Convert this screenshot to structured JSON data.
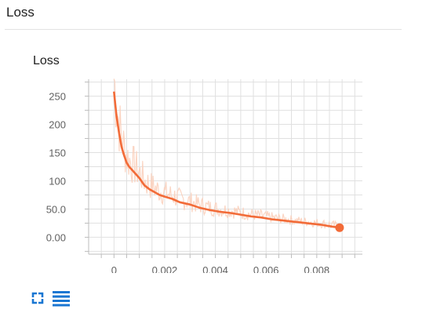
{
  "section": {
    "title": "Loss"
  },
  "card": {
    "title": "Loss",
    "expand_icon": "fullscreen-icon",
    "data_icon": "list-icon"
  },
  "colors": {
    "series": "#f26b38",
    "series_raw": "#fbd0bd",
    "grid": "#e0e0e0",
    "axis": "#bdbdbd",
    "tick_text": "#616161",
    "icon": "#1976d2"
  },
  "chart_data": {
    "type": "line",
    "title": "Loss",
    "xlabel": "",
    "ylabel": "",
    "xlim": [
      -0.001,
      0.0098
    ],
    "ylim": [
      -30,
      280
    ],
    "x_ticks": [
      0,
      0.002,
      0.004,
      0.006,
      0.008
    ],
    "x_tick_labels": [
      "0",
      "0.002",
      "0.004",
      "0.006",
      "0.008"
    ],
    "y_ticks": [
      0,
      50,
      100,
      150,
      200,
      250
    ],
    "y_tick_labels": [
      "0.00",
      "50.0",
      "100",
      "150",
      "200",
      "250"
    ],
    "grid": true,
    "series": [
      {
        "x": [
          0,
          0.0001,
          0.0002,
          0.0003,
          0.0004,
          0.0005,
          0.0006,
          0.0008,
          0.001,
          0.0012,
          0.0014,
          0.0016,
          0.0018,
          0.002,
          0.0023,
          0.0026,
          0.003,
          0.0034,
          0.0038,
          0.0042,
          0.0046,
          0.005,
          0.0054,
          0.0058,
          0.0062,
          0.0066,
          0.007,
          0.0074,
          0.0078,
          0.0082,
          0.0086,
          0.0089
        ],
        "y": [
          258,
          215,
          185,
          160,
          145,
          132,
          125,
          115,
          105,
          92,
          85,
          80,
          75,
          72,
          68,
          62,
          58,
          52,
          48,
          45,
          43,
          40,
          37,
          35,
          32,
          30,
          28,
          26,
          24,
          22,
          19,
          17
        ]
      }
    ]
  }
}
